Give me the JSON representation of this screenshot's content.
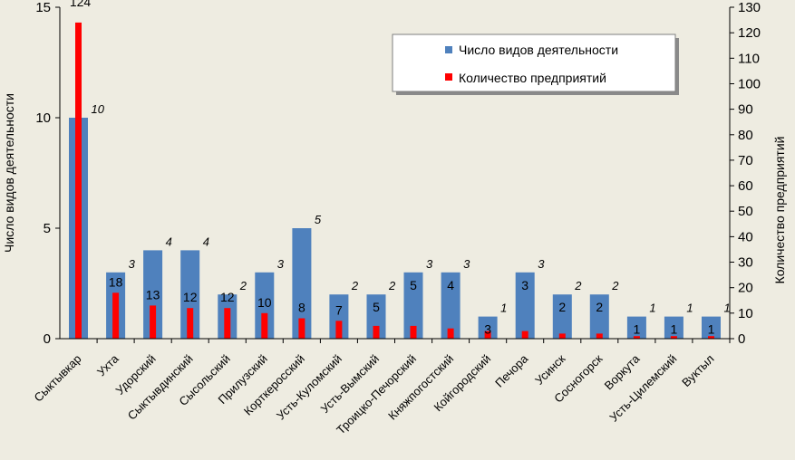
{
  "chart_data": {
    "type": "bar",
    "categories": [
      "Сыктывкар",
      "Ухта",
      "Удорский",
      "Сыктывдинский",
      "Сысольский",
      "Прилузский",
      "Корткеросский",
      "Усть-Куломский",
      "Усть-Вымский",
      "Троицко-Печорский",
      "Княжпогостский",
      "Койгородский",
      "Печора",
      "Усинск",
      "Сосногорск",
      "Воркута",
      "Усть-Цилемский",
      "Вуктыл"
    ],
    "series": [
      {
        "name": "Число видов деятельности",
        "axis": "left",
        "color": "#4f81bd",
        "values": [
          10,
          3,
          4,
          4,
          2,
          3,
          5,
          2,
          2,
          3,
          3,
          1,
          3,
          2,
          2,
          1,
          1,
          1
        ],
        "labels": [
          "10",
          "3",
          "4",
          "4",
          "2",
          "3",
          "5",
          "2",
          "2",
          "3",
          "3",
          "1",
          "3",
          "2",
          "2",
          "1",
          "1",
          "1"
        ]
      },
      {
        "name": "Количество предприятий",
        "axis": "right",
        "color": "#ff0000",
        "values": [
          124,
          18,
          13,
          12,
          12,
          10,
          8,
          7,
          5,
          5,
          4,
          3,
          3,
          2,
          2,
          1,
          1,
          1
        ],
        "labels": [
          "124",
          "18",
          "13",
          "12",
          "12",
          "10",
          "8",
          "7",
          "5",
          "5",
          "4",
          "3",
          "3",
          "2",
          "2",
          "1",
          "1",
          "1"
        ]
      }
    ],
    "y_left": {
      "label": "Число видов деятельности",
      "range": [
        0,
        15
      ],
      "ticks": [
        0,
        5,
        10,
        15
      ],
      "tick_labels": [
        "0",
        "5",
        "10",
        "15"
      ]
    },
    "y_right": {
      "label": "Количество предприятий",
      "range": [
        0,
        130
      ],
      "ticks": [
        0,
        10,
        20,
        30,
        40,
        50,
        60,
        70,
        80,
        90,
        100,
        110,
        120,
        130
      ],
      "tick_labels": [
        "0",
        "10",
        "20",
        "30",
        "40",
        "50",
        "60",
        "70",
        "80",
        "90",
        "100",
        "110",
        "120",
        "130"
      ]
    },
    "legend": {
      "position": "top-right",
      "entries": [
        "Число видов деятельности",
        "Количество предприятий"
      ]
    }
  }
}
